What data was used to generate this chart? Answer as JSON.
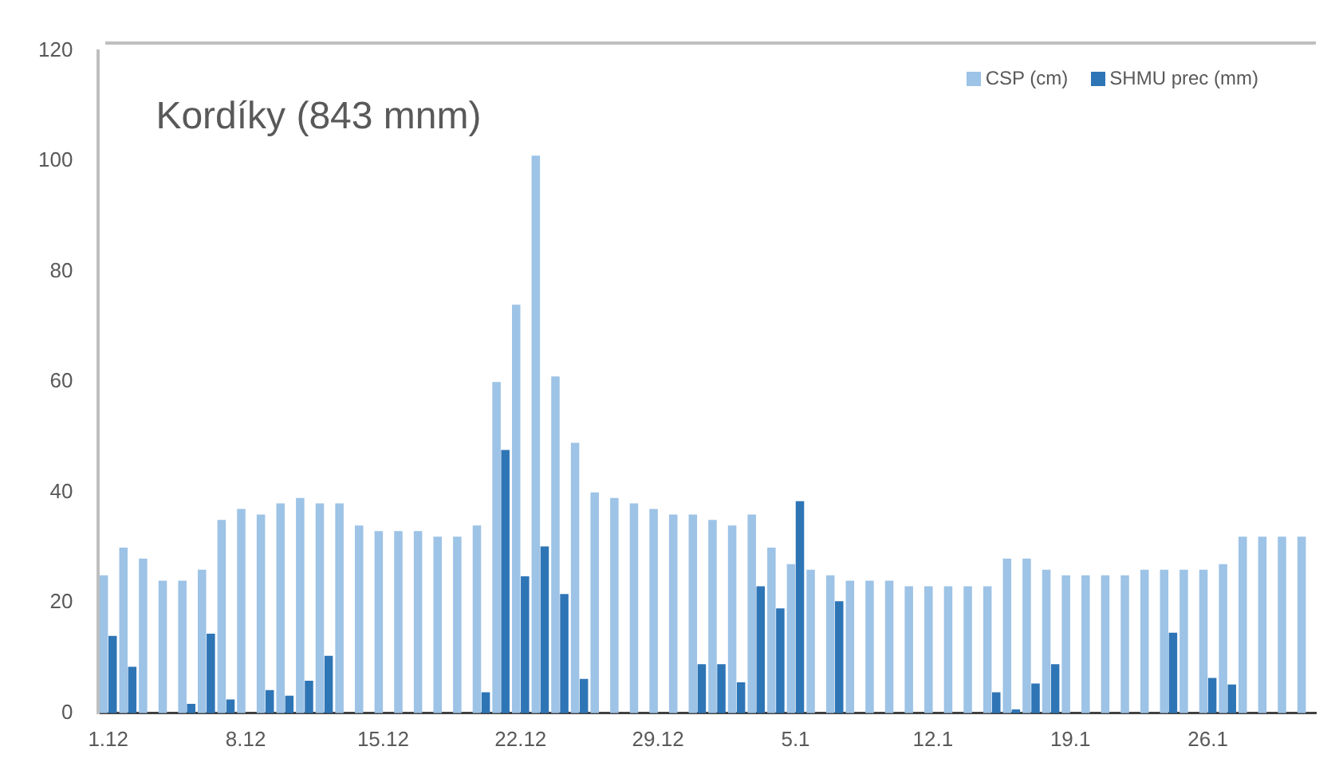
{
  "chart_data": {
    "type": "bar",
    "title": "Kordíky (843 mnm)",
    "categories": [
      "1.12",
      null,
      null,
      null,
      null,
      null,
      null,
      "8.12",
      null,
      null,
      null,
      null,
      null,
      null,
      "15.12",
      null,
      null,
      null,
      null,
      null,
      null,
      "22.12",
      null,
      null,
      null,
      null,
      null,
      null,
      "29.12",
      null,
      null,
      null,
      null,
      null,
      null,
      "5.1",
      null,
      null,
      null,
      null,
      null,
      null,
      "12.1",
      null,
      null,
      null,
      null,
      null,
      null,
      "19.1",
      null,
      null,
      null,
      null,
      null,
      null,
      "26.1",
      null,
      null,
      null,
      null,
      null
    ],
    "series": [
      {
        "name": "CSP (cm)",
        "color": "#9dc3e6",
        "values": [
          25,
          30,
          28,
          24,
          24,
          26,
          35,
          37,
          36,
          38,
          39,
          38,
          38,
          34,
          33,
          33,
          33,
          32,
          32,
          34,
          60,
          74,
          101,
          61,
          49,
          40,
          39,
          38,
          37,
          36,
          36,
          35,
          34,
          36,
          30,
          27,
          26,
          25,
          24,
          24,
          24,
          23,
          23,
          23,
          23,
          23,
          28,
          28,
          26,
          25,
          25,
          25,
          25,
          26,
          26,
          26,
          26,
          27,
          32,
          32,
          32,
          32
        ]
      },
      {
        "name": "SHMU prec (mm)",
        "color": "#2e75b6",
        "values": [
          14,
          8.4,
          0,
          0,
          1.7,
          14.4,
          2.5,
          0,
          4.2,
          3.2,
          5.9,
          10.4,
          null,
          0,
          0,
          0,
          0,
          0,
          0,
          3.8,
          47.7,
          24.8,
          30.2,
          21.6,
          6.2,
          0,
          0,
          0,
          0,
          0,
          8.9,
          8.9,
          5.6,
          23,
          19,
          38.4,
          0,
          20.3,
          0,
          0,
          0,
          0,
          0,
          0,
          0,
          3.8,
          0.7,
          5.4,
          8.9,
          0,
          0,
          0,
          null,
          0,
          14.6,
          0,
          6.4,
          5.2,
          0,
          0,
          0,
          0
        ]
      }
    ],
    "ylim": [
      0,
      120
    ],
    "yticks": [
      0,
      20,
      40,
      60,
      80,
      100,
      120
    ],
    "grid": false,
    "legend": "top right"
  }
}
